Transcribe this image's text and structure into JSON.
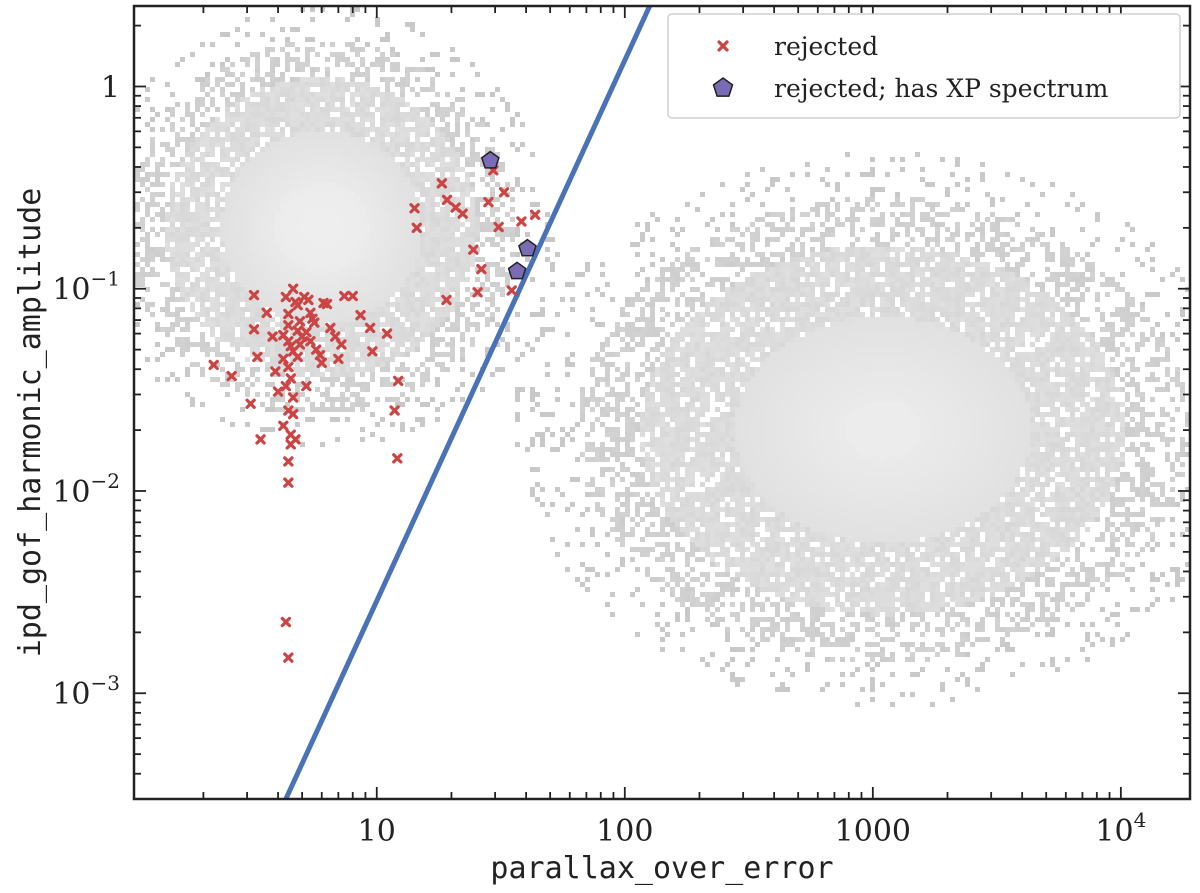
{
  "chart_data": {
    "type": "scatter",
    "xlabel": "parallax_over_error",
    "ylabel": "ipd_gof_harmonic_amplitude",
    "xscale": "log",
    "yscale": "log",
    "xlim": [
      1.05,
      19000
    ],
    "ylim": [
      0.0003,
      2.5
    ],
    "x_ticks": [
      {
        "value": 10,
        "label": "10"
      },
      {
        "value": 100,
        "label": "100"
      },
      {
        "value": 1000,
        "label": "1000"
      },
      {
        "value": 10000,
        "label": "10",
        "exp": "4"
      }
    ],
    "y_ticks": [
      {
        "value": 1,
        "label": "1",
        "exp": ""
      },
      {
        "value": 0.1,
        "label": "10",
        "exp": "−1"
      },
      {
        "value": 0.01,
        "label": "10",
        "exp": "−2"
      },
      {
        "value": 0.001,
        "label": "10",
        "exp": "−3"
      }
    ],
    "background_density": {
      "description_color": "#c8c8c8",
      "clusters": [
        {
          "center_x": 6,
          "center_y": 0.2,
          "spread_logx": 0.28,
          "spread_logy": 0.33,
          "weight": 1.0
        },
        {
          "center_x": 1100,
          "center_y": 0.02,
          "spread_logx": 0.45,
          "spread_logy": 0.42,
          "weight": 0.85
        }
      ]
    },
    "boundary_line": {
      "color": "#4a72b8",
      "points": [
        [
          4.3,
          0.0003
        ],
        [
          126,
          2.5
        ]
      ]
    },
    "series": [
      {
        "name": "rejected",
        "marker": "x",
        "color": "#cc4444",
        "points": [
          [
            2.2,
            0.042
          ],
          [
            2.6,
            0.037
          ],
          [
            3.2,
            0.093
          ],
          [
            3.2,
            0.063
          ],
          [
            3.3,
            0.046
          ],
          [
            3.1,
            0.027
          ],
          [
            3.4,
            0.018
          ],
          [
            3.6,
            0.076
          ],
          [
            3.8,
            0.058
          ],
          [
            3.9,
            0.039
          ],
          [
            4.0,
            0.031
          ],
          [
            4.3,
            0.091
          ],
          [
            4.4,
            0.075
          ],
          [
            4.4,
            0.066
          ],
          [
            4.2,
            0.059
          ],
          [
            4.4,
            0.055
          ],
          [
            4.5,
            0.052
          ],
          [
            4.6,
            0.049
          ],
          [
            4.2,
            0.045
          ],
          [
            4.4,
            0.041
          ],
          [
            4.5,
            0.036
          ],
          [
            4.3,
            0.033
          ],
          [
            4.6,
            0.029
          ],
          [
            4.4,
            0.025
          ],
          [
            4.6,
            0.024
          ],
          [
            4.2,
            0.021
          ],
          [
            4.5,
            0.019
          ],
          [
            4.7,
            0.018
          ],
          [
            4.5,
            0.017
          ],
          [
            4.4,
            0.014
          ],
          [
            4.4,
            0.011
          ],
          [
            4.6,
            0.1
          ],
          [
            4.7,
            0.086
          ],
          [
            4.8,
            0.083
          ],
          [
            4.9,
            0.069
          ],
          [
            4.8,
            0.062
          ],
          [
            5.0,
            0.058
          ],
          [
            4.9,
            0.053
          ],
          [
            4.8,
            0.046
          ],
          [
            5.1,
            0.091
          ],
          [
            5.3,
            0.088
          ],
          [
            5.4,
            0.076
          ],
          [
            5.5,
            0.071
          ],
          [
            5.6,
            0.068
          ],
          [
            5.2,
            0.061
          ],
          [
            5.4,
            0.055
          ],
          [
            5.7,
            0.05
          ],
          [
            5.9,
            0.047
          ],
          [
            6.1,
            0.085
          ],
          [
            6.3,
            0.084
          ],
          [
            6.5,
            0.064
          ],
          [
            6.8,
            0.058
          ],
          [
            7.2,
            0.053
          ],
          [
            7.4,
            0.092
          ],
          [
            8.0,
            0.092
          ],
          [
            7.0,
            0.045
          ],
          [
            8.6,
            0.074
          ],
          [
            9.4,
            0.064
          ],
          [
            9.6,
            0.049
          ],
          [
            11,
            0.06
          ],
          [
            6.0,
            0.043
          ],
          [
            5.2,
            0.033
          ],
          [
            11.8,
            0.025
          ],
          [
            12.2,
            0.035
          ],
          [
            12.1,
            0.0145
          ],
          [
            14.2,
            0.25
          ],
          [
            14.5,
            0.2
          ],
          [
            18.3,
            0.332
          ],
          [
            19.2,
            0.275
          ],
          [
            19.1,
            0.088
          ],
          [
            20.8,
            0.252
          ],
          [
            22.2,
            0.235
          ],
          [
            24.5,
            0.156
          ],
          [
            25.5,
            0.096
          ],
          [
            26.4,
            0.125
          ],
          [
            28.2,
            0.268
          ],
          [
            29.5,
            0.385
          ],
          [
            31.0,
            0.202
          ],
          [
            32.6,
            0.3
          ],
          [
            35.0,
            0.098
          ],
          [
            38.3,
            0.215
          ],
          [
            43.5,
            0.232
          ],
          [
            4.3,
            0.00225
          ],
          [
            4.4,
            0.0015
          ]
        ]
      },
      {
        "name": "rejected; has XP spectrum",
        "marker": "pentagon",
        "color": "#7a6bb5",
        "points": [
          [
            28.7,
            0.43
          ],
          [
            40.5,
            0.158
          ],
          [
            36.8,
            0.122
          ]
        ]
      }
    ],
    "legend": {
      "position": "top-right"
    },
    "grid": false
  }
}
